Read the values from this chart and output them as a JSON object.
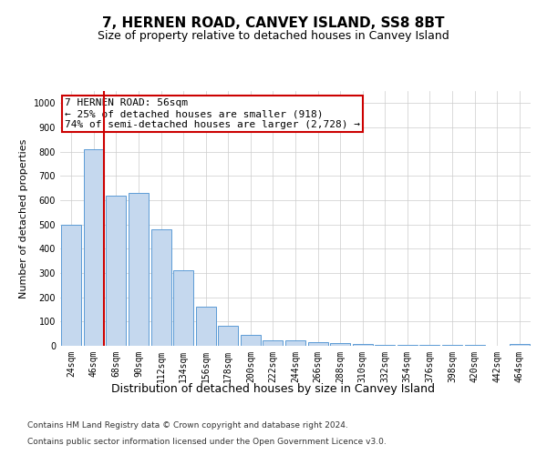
{
  "title": "7, HERNEN ROAD, CANVEY ISLAND, SS8 8BT",
  "subtitle": "Size of property relative to detached houses in Canvey Island",
  "xlabel": "Distribution of detached houses by size in Canvey Island",
  "ylabel": "Number of detached properties",
  "footnote1": "Contains HM Land Registry data © Crown copyright and database right 2024.",
  "footnote2": "Contains public sector information licensed under the Open Government Licence v3.0.",
  "annotation_line1": "7 HERNEN ROAD: 56sqm",
  "annotation_line2": "← 25% of detached houses are smaller (918)",
  "annotation_line3": "74% of semi-detached houses are larger (2,728) →",
  "bar_color": "#c5d8ee",
  "bar_edge_color": "#5b9bd5",
  "ref_line_color": "#cc0000",
  "ref_line_x": 1,
  "categories": [
    "24sqm",
    "46sqm",
    "68sqm",
    "90sqm",
    "112sqm",
    "134sqm",
    "156sqm",
    "178sqm",
    "200sqm",
    "222sqm",
    "244sqm",
    "266sqm",
    "288sqm",
    "310sqm",
    "332sqm",
    "354sqm",
    "376sqm",
    "398sqm",
    "420sqm",
    "442sqm",
    "464sqm"
  ],
  "values": [
    500,
    810,
    620,
    630,
    480,
    310,
    160,
    82,
    44,
    22,
    22,
    15,
    10,
    8,
    5,
    4,
    3,
    2,
    2,
    1,
    8
  ],
  "ylim": [
    0,
    1050
  ],
  "yticks": [
    0,
    100,
    200,
    300,
    400,
    500,
    600,
    700,
    800,
    900,
    1000
  ],
  "background_color": "#ffffff",
  "grid_color": "#cccccc",
  "title_fontsize": 11,
  "subtitle_fontsize": 9,
  "xlabel_fontsize": 9,
  "ylabel_fontsize": 8,
  "tick_fontsize": 7,
  "annotation_fontsize": 8,
  "footnote_fontsize": 6.5
}
